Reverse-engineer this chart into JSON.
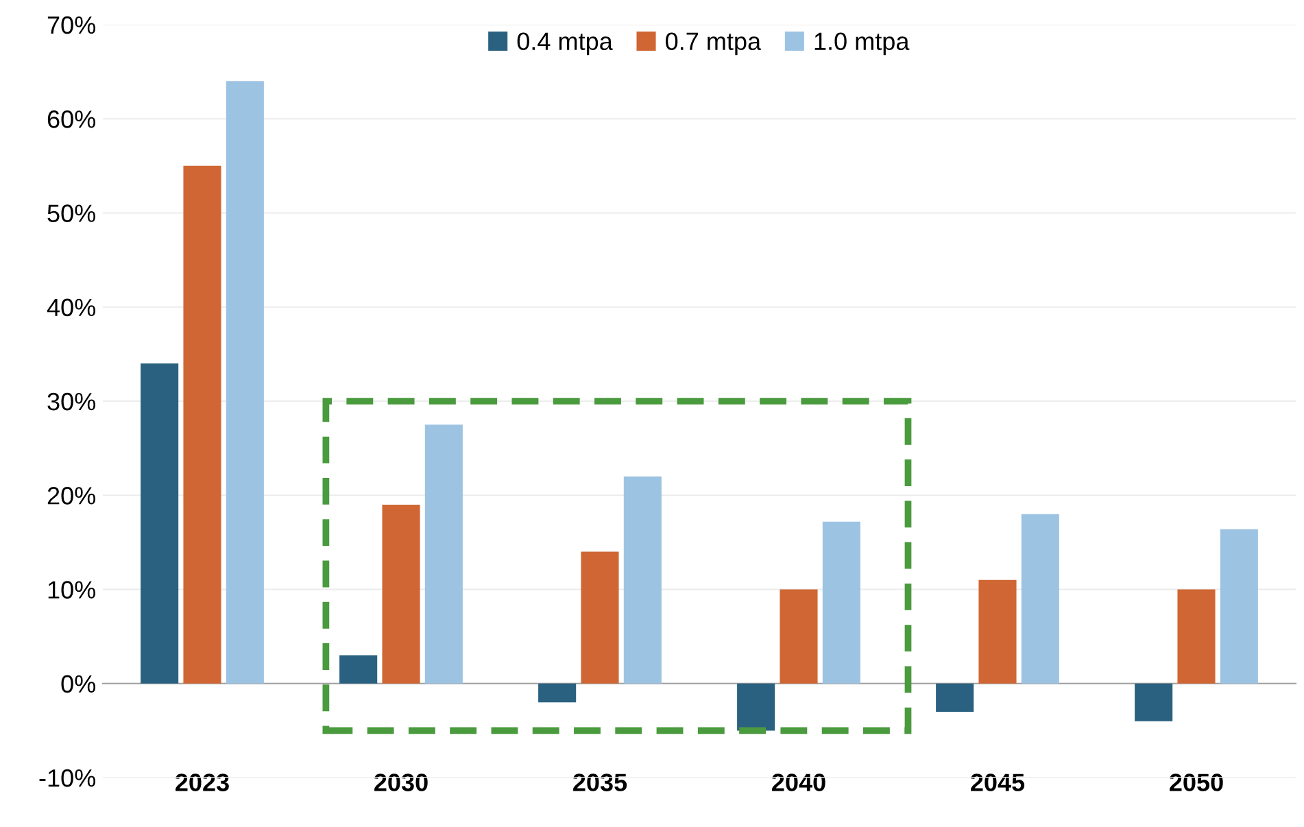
{
  "chart_data": {
    "type": "bar",
    "categories": [
      "2023",
      "2030",
      "2035",
      "2040",
      "2045",
      "2050"
    ],
    "series": [
      {
        "name": "0.4 mtpa",
        "color": "#2a6180",
        "values": [
          34,
          3,
          -2,
          -5,
          -3,
          -4
        ]
      },
      {
        "name": "0.7 mtpa",
        "color": "#d06633",
        "values": [
          55,
          19,
          14,
          10,
          11,
          10
        ]
      },
      {
        "name": "1.0 mtpa",
        "color": "#9dc3e3",
        "values": [
          64,
          27.5,
          22,
          17.2,
          18,
          16.4
        ]
      }
    ],
    "ylim": [
      -10,
      70
    ],
    "yticks": [
      {
        "value": -10,
        "label": "-10%"
      },
      {
        "value": 0,
        "label": "0%"
      },
      {
        "value": 10,
        "label": "10%"
      },
      {
        "value": 20,
        "label": "20%"
      },
      {
        "value": 30,
        "label": "30%"
      },
      {
        "value": 40,
        "label": "40%"
      },
      {
        "value": 50,
        "label": "50%"
      },
      {
        "value": 60,
        "label": "60%"
      },
      {
        "value": 70,
        "label": "70%"
      }
    ],
    "grid": "y",
    "legend": "top"
  }
}
